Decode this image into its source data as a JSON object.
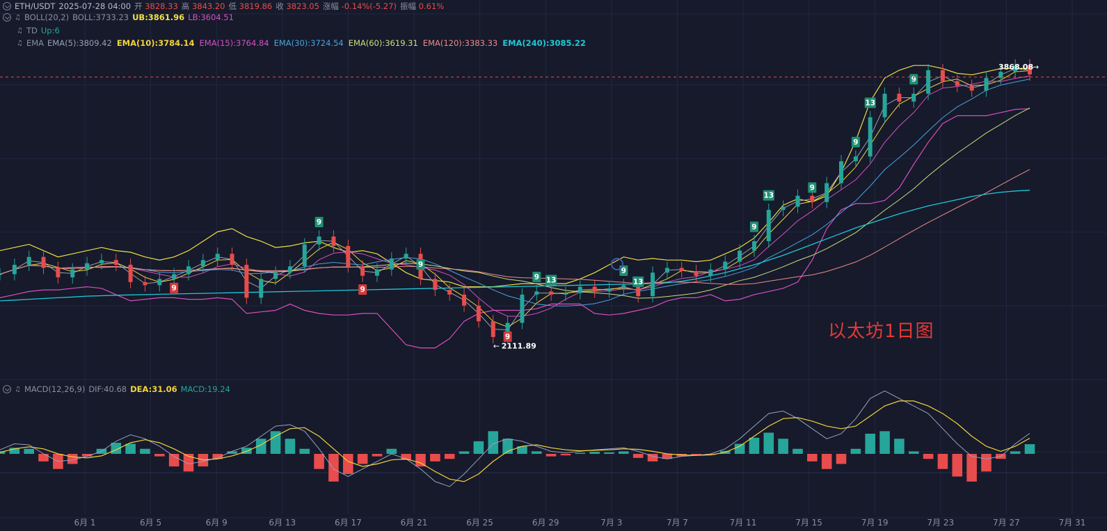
{
  "header": {
    "symbol": "ETH/USDT",
    "datetime": "2025-07-28 04:00",
    "open_label": "开",
    "open": "3828.33",
    "high_label": "高",
    "high": "3843.20",
    "low_label": "低",
    "low": "3819.86",
    "close_label": "收",
    "close": "3823.05",
    "change_label": "涨幅",
    "change": "-0.14%(-5.27)",
    "amp_label": "振幅",
    "amp": "0.61%"
  },
  "boll": {
    "name": "BOLL(20,2)",
    "mid": "BOLL:3733.23",
    "ub": "UB:3861.96",
    "lb": "LB:3604.51"
  },
  "td": {
    "name": "TD",
    "value": "Up:6"
  },
  "ema": {
    "name": "EMA",
    "items": [
      {
        "label": "EMA(5):3809.42",
        "color": "#9aa0b0"
      },
      {
        "label": "EMA(10):3784.14",
        "color": "#f5d33a"
      },
      {
        "label": "EMA(15):3764.84",
        "color": "#d94fc0"
      },
      {
        "label": "EMA(30):3724.54",
        "color": "#4aa3df"
      },
      {
        "label": "EMA(60):3619.31",
        "color": "#c9e07a"
      },
      {
        "label": "EMA(120):3383.33",
        "color": "#f08a8a"
      },
      {
        "label": "EMA(240):3085.22",
        "color": "#1fc8d8"
      }
    ]
  },
  "macd": {
    "name": "MACD(12,26,9)",
    "dif": "DIF:40.68",
    "dea": "DEA:31.06",
    "macd": "MACD:19.24"
  },
  "watermark": "以太坊1日图",
  "price_tag": "3868.08",
  "low_tag": "2111.89",
  "colors": {
    "bg": "#161a2b",
    "up": "#26a69a",
    "down": "#e84c4c",
    "boll_band": "#f0e040",
    "boll_lower": "#d94fc0"
  },
  "chart_data": [
    {
      "type": "candlestick",
      "title": "ETH/USDT",
      "xlabel": "",
      "ylabel": "",
      "x_ticks": [
        "6月 1",
        "6月 5",
        "6月 9",
        "6月 13",
        "6月 17",
        "6月 21",
        "6月 25",
        "6月 29",
        "7月 3",
        "7月 7",
        "7月 11",
        "7月 15",
        "7月 19",
        "7月 23",
        "7月 27",
        "7月 31"
      ],
      "ylim": [
        1950,
        4120
      ],
      "current_price": 3868.08,
      "period_low": 2111.89,
      "td_markers": [
        {
          "label": "9",
          "type": "down",
          "approx_x": "5/30"
        },
        {
          "label": "9",
          "type": "up",
          "approx_x": "6/10"
        },
        {
          "label": "9",
          "type": "down",
          "approx_x": "6/13"
        },
        {
          "label": "9",
          "type": "up",
          "approx_x": "6/17"
        },
        {
          "label": "9",
          "type": "down",
          "approx_x": "6/23"
        },
        {
          "label": "9",
          "type": "up",
          "approx_x": "6/25"
        },
        {
          "label": "13",
          "type": "up",
          "approx_x": "6/26"
        },
        {
          "label": "9",
          "type": "up",
          "approx_x": "7/1"
        },
        {
          "label": "13",
          "type": "up",
          "approx_x": "7/2"
        },
        {
          "label": "9",
          "type": "up",
          "approx_x": "7/10"
        },
        {
          "label": "13",
          "type": "up",
          "approx_x": "7/11"
        },
        {
          "label": "9",
          "type": "up",
          "approx_x": "7/14"
        },
        {
          "label": "9",
          "type": "up",
          "approx_x": "7/17"
        },
        {
          "label": "13",
          "type": "up",
          "approx_x": "7/18"
        },
        {
          "label": "9",
          "type": "up",
          "approx_x": "7/21"
        }
      ],
      "series": [
        {
          "name": "Price (close)",
          "values": [
            2550,
            2610,
            2660,
            2590,
            2530,
            2580,
            2620,
            2640,
            2610,
            2500,
            2480,
            2520,
            2550,
            2600,
            2640,
            2680,
            2610,
            2400,
            2520,
            2560,
            2600,
            2740,
            2790,
            2730,
            2600,
            2540,
            2580,
            2650,
            2680,
            2520,
            2450,
            2420,
            2350,
            2250,
            2150,
            2240,
            2420,
            2440,
            2420,
            2430,
            2470,
            2440,
            2460,
            2480,
            2410,
            2560,
            2590,
            2570,
            2540,
            2580,
            2630,
            2700,
            2760,
            2960,
            2980,
            3050,
            3010,
            3130,
            3270,
            3300,
            3550,
            3700,
            3650,
            3700,
            3850,
            3780,
            3750,
            3720,
            3800,
            3840,
            3880,
            3823
          ]
        },
        {
          "name": "BOLL UB",
          "values": [
            2700,
            2720,
            2740,
            2700,
            2660,
            2680,
            2700,
            2720,
            2700,
            2690,
            2660,
            2640,
            2660,
            2700,
            2760,
            2820,
            2840,
            2790,
            2760,
            2720,
            2730,
            2750,
            2760,
            2720,
            2690,
            2700,
            2680,
            2620,
            2560,
            2520,
            2510,
            2500,
            2470,
            2470,
            2470,
            2480,
            2490,
            2490,
            2490,
            2490,
            2520,
            2560,
            2610,
            2660,
            2640,
            2650,
            2640,
            2640,
            2630,
            2640,
            2680,
            2720,
            2780,
            2880,
            2990,
            3030,
            3010,
            3050,
            3200,
            3400,
            3650,
            3800,
            3850,
            3880,
            3880,
            3860,
            3830,
            3820,
            3840,
            3860,
            3862,
            3862
          ]
        },
        {
          "name": "BOLL LB",
          "values": [
            2400,
            2420,
            2440,
            2450,
            2450,
            2460,
            2470,
            2460,
            2420,
            2380,
            2390,
            2400,
            2400,
            2390,
            2390,
            2400,
            2390,
            2300,
            2310,
            2320,
            2360,
            2320,
            2300,
            2290,
            2290,
            2300,
            2300,
            2200,
            2100,
            2080,
            2080,
            2140,
            2250,
            2300,
            2320,
            2320,
            2320,
            2330,
            2360,
            2360,
            2360,
            2300,
            2290,
            2300,
            2320,
            2340,
            2380,
            2400,
            2400,
            2420,
            2380,
            2390,
            2420,
            2440,
            2460,
            2500,
            2640,
            2840,
            2960,
            3000,
            3000,
            3020,
            3100,
            3250,
            3390,
            3510,
            3560,
            3560,
            3560,
            3580,
            3600,
            3605
          ]
        },
        {
          "name": "EMA(240)",
          "values": [
            2380,
            2385,
            2390,
            2395,
            2400,
            2405,
            2410,
            2413,
            2416,
            2418,
            2420,
            2422,
            2424,
            2426,
            2428,
            2430,
            2432,
            2434,
            2436,
            2438,
            2440,
            2442,
            2444,
            2446,
            2448,
            2450,
            2452,
            2454,
            2456,
            2458,
            2460,
            2462,
            2464,
            2466,
            2468,
            2470,
            2472,
            2474,
            2476,
            2478,
            2480,
            2482,
            2484,
            2486,
            2488,
            2490,
            2495,
            2505,
            2520,
            2540,
            2560,
            2585,
            2610,
            2640,
            2670,
            2705,
            2740,
            2775,
            2810,
            2845,
            2875,
            2905,
            2935,
            2960,
            2985,
            3005,
            3025,
            3045,
            3060,
            3072,
            3080,
            3085
          ]
        }
      ]
    },
    {
      "type": "bar",
      "title": "MACD(12,26,9)",
      "xlabel": "",
      "ylabel": "",
      "ylim": [
        -120,
        120
      ],
      "series": [
        {
          "name": "MACD",
          "values": [
            5,
            12,
            10,
            -15,
            -30,
            -20,
            -5,
            10,
            22,
            20,
            10,
            -5,
            -25,
            -35,
            -25,
            -10,
            5,
            12,
            30,
            45,
            30,
            10,
            -30,
            -55,
            -40,
            -20,
            -5,
            10,
            -12,
            -25,
            -15,
            -10,
            5,
            25,
            45,
            30,
            15,
            5,
            -5,
            -3,
            2,
            4,
            3,
            5,
            -8,
            -15,
            -10,
            -5,
            -3,
            -2,
            6,
            20,
            32,
            42,
            30,
            10,
            -15,
            -30,
            -20,
            10,
            40,
            45,
            30,
            5,
            -10,
            -30,
            -45,
            -55,
            -35,
            -10,
            5,
            19.24
          ]
        },
        {
          "name": "DIF",
          "values": [
            8,
            20,
            18,
            0,
            -15,
            -12,
            -5,
            5,
            25,
            38,
            30,
            15,
            -5,
            -20,
            -15,
            -8,
            5,
            15,
            35,
            55,
            58,
            45,
            10,
            -30,
            -45,
            -30,
            -15,
            0,
            -10,
            -30,
            -55,
            -65,
            -40,
            -10,
            20,
            30,
            25,
            15,
            5,
            2,
            5,
            8,
            10,
            12,
            5,
            -5,
            -10,
            -5,
            -3,
            0,
            10,
            30,
            55,
            80,
            85,
            70,
            50,
            30,
            40,
            70,
            110,
            125,
            110,
            95,
            80,
            50,
            20,
            -5,
            -10,
            -5,
            20,
            40.68
          ]
        },
        {
          "name": "DEA",
          "values": [
            3,
            10,
            14,
            10,
            0,
            -6,
            -8,
            -4,
            8,
            22,
            28,
            22,
            10,
            -5,
            -12,
            -10,
            -4,
            5,
            18,
            35,
            50,
            52,
            35,
            10,
            -15,
            -25,
            -20,
            -12,
            -10,
            -18,
            -35,
            -50,
            -55,
            -40,
            -15,
            5,
            15,
            18,
            12,
            8,
            6,
            7,
            8,
            10,
            9,
            5,
            0,
            -2,
            -3,
            -2,
            3,
            15,
            35,
            55,
            70,
            72,
            65,
            55,
            50,
            55,
            75,
            95,
            105,
            105,
            95,
            80,
            60,
            35,
            15,
            5,
            15,
            31.06
          ]
        }
      ]
    }
  ]
}
